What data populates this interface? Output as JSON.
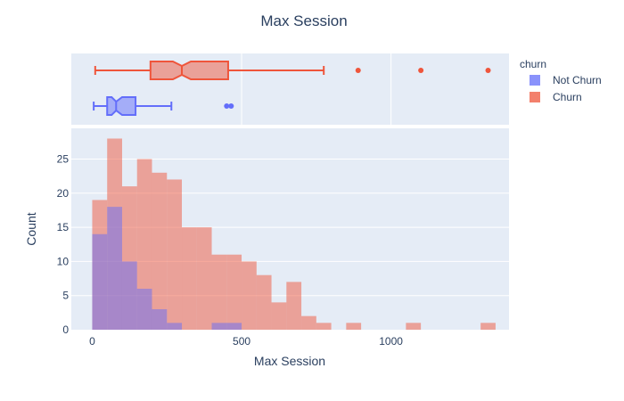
{
  "chart_data": {
    "type": "histogram",
    "title": "Max Session",
    "xlabel": "Max Session",
    "ylabel": "Count",
    "xlim": [
      -70,
      1395
    ],
    "ylim": [
      0,
      29.5
    ],
    "x_ticks": [
      0,
      500,
      1000
    ],
    "x_tick_labels": [
      "0",
      "500",
      "1000"
    ],
    "y_ticks": [
      0,
      5,
      10,
      15,
      20,
      25
    ],
    "y_tick_labels": [
      "0",
      "5",
      "10",
      "15",
      "20",
      "25"
    ],
    "grid": true,
    "barmode": "overlay",
    "bin_width": 50,
    "legend": {
      "title": "churn",
      "placement": "right",
      "entries": [
        {
          "label": "Not Churn",
          "color": "#636efa"
        },
        {
          "label": "Churn",
          "color": "#ef553b"
        }
      ]
    },
    "series": [
      {
        "name": "Churn",
        "color": "#ef553b",
        "bins": [
          {
            "x0": 0,
            "x1": 50,
            "count": 19
          },
          {
            "x0": 50,
            "x1": 100,
            "count": 28
          },
          {
            "x0": 100,
            "x1": 150,
            "count": 21
          },
          {
            "x0": 150,
            "x1": 200,
            "count": 25
          },
          {
            "x0": 200,
            "x1": 250,
            "count": 23
          },
          {
            "x0": 250,
            "x1": 300,
            "count": 22
          },
          {
            "x0": 300,
            "x1": 350,
            "count": 15
          },
          {
            "x0": 350,
            "x1": 400,
            "count": 15
          },
          {
            "x0": 400,
            "x1": 450,
            "count": 11
          },
          {
            "x0": 450,
            "x1": 500,
            "count": 11
          },
          {
            "x0": 500,
            "x1": 550,
            "count": 10
          },
          {
            "x0": 550,
            "x1": 600,
            "count": 8
          },
          {
            "x0": 600,
            "x1": 650,
            "count": 4
          },
          {
            "x0": 650,
            "x1": 700,
            "count": 7
          },
          {
            "x0": 700,
            "x1": 750,
            "count": 2
          },
          {
            "x0": 750,
            "x1": 800,
            "count": 1
          },
          {
            "x0": 850,
            "x1": 900,
            "count": 1
          },
          {
            "x0": 1050,
            "x1": 1100,
            "count": 1
          },
          {
            "x0": 1300,
            "x1": 1350,
            "count": 1
          }
        ],
        "box": {
          "lowerfence": 10,
          "q1": 195,
          "median": 300,
          "q3": 455,
          "upperfence": 775,
          "notch_low": 270,
          "notch_high": 330,
          "outliers": [
            890,
            1100,
            1325
          ]
        }
      },
      {
        "name": "Not Churn",
        "color": "#636efa",
        "bins": [
          {
            "x0": 0,
            "x1": 50,
            "count": 14
          },
          {
            "x0": 50,
            "x1": 100,
            "count": 18
          },
          {
            "x0": 100,
            "x1": 150,
            "count": 10
          },
          {
            "x0": 150,
            "x1": 200,
            "count": 6
          },
          {
            "x0": 200,
            "x1": 250,
            "count": 3
          },
          {
            "x0": 250,
            "x1": 300,
            "count": 1
          },
          {
            "x0": 400,
            "x1": 450,
            "count": 1
          },
          {
            "x0": 450,
            "x1": 500,
            "count": 1
          }
        ],
        "box": {
          "lowerfence": 5,
          "q1": 50,
          "median": 80,
          "q3": 145,
          "upperfence": 265,
          "notch_low": 65,
          "notch_high": 100,
          "outliers": [
            450,
            465
          ]
        }
      }
    ]
  }
}
